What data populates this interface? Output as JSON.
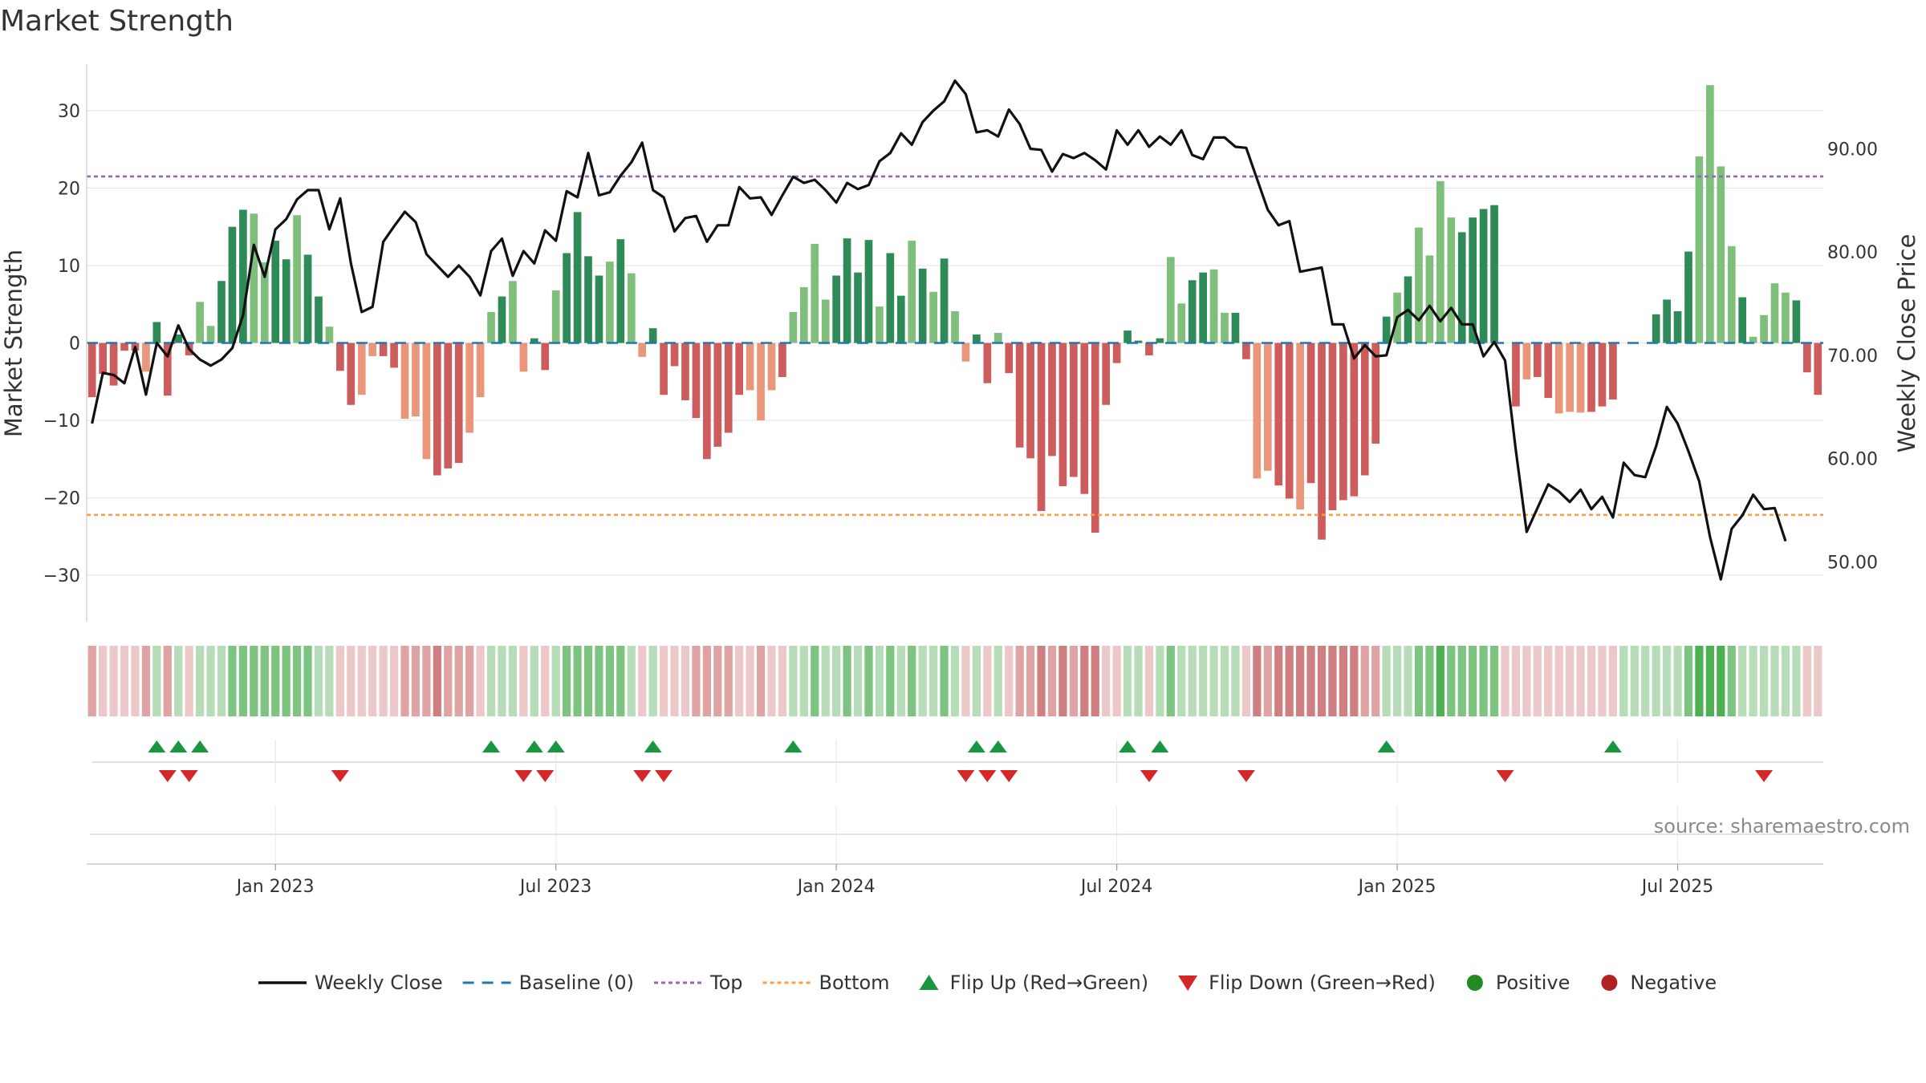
{
  "chart_data": {
    "type": "bar",
    "title": "Market Strength",
    "ylabel_left": "Market Strength",
    "ylabel_right": "Weekly Close Price",
    "source": "source: sharemaestro.com",
    "x_start": "2022-09-05",
    "ylim_left": [
      -36,
      36
    ],
    "yticks_left": [
      30,
      20,
      10,
      0,
      -10,
      -20,
      -30
    ],
    "ytick_labels_left": [
      "30",
      "20",
      "10",
      "0",
      "−10",
      "−20",
      "−30"
    ],
    "ylim_right": [
      44.2,
      98.2
    ],
    "yticks_right": [
      90,
      80,
      70,
      60,
      50
    ],
    "ytick_labels_right": [
      "90.00",
      "80.00",
      "70.00",
      "60.00",
      "50.00"
    ],
    "xticks": [
      {
        "label": "Jan 2023",
        "week": 17
      },
      {
        "label": "Jul 2023",
        "week": 43
      },
      {
        "label": "Jan 2024",
        "week": 69
      },
      {
        "label": "Jul 2024",
        "week": 95
      },
      {
        "label": "Jan 2025",
        "week": 121
      },
      {
        "label": "Jul 2025",
        "week": 147
      }
    ],
    "top_line": 21.5,
    "bottom_line": -22.2,
    "baseline": 0,
    "colors": {
      "pos_strong": "#2e8b57",
      "pos_weak": "#7fbf7b",
      "neg_strong": "#cd5c5c",
      "neg_weak": "#e9967a",
      "close": "#111111",
      "baseline": "#1f77b4",
      "top": "#9467bd",
      "bottom": "#ff9f43",
      "flip_up": "#1a9641",
      "flip_down": "#d62728",
      "positive": "#228b22",
      "negative": "#b22222",
      "grid": "#e6e6e6",
      "source": "#8a8a8a"
    },
    "strength": [
      -7,
      -4,
      -5.5,
      -1,
      -1,
      -3.7,
      2.7,
      -6.8,
      1.1,
      -1.6,
      5.3,
      2.2,
      8,
      15,
      17.2,
      16.7,
      10.4,
      13.2,
      10.8,
      16.5,
      11.4,
      6,
      2.1,
      -3.6,
      -8,
      -6.7,
      -1.7,
      -1.7,
      -3.2,
      -9.8,
      -9.5,
      -15,
      -17.1,
      -16.2,
      -15.5,
      -11.6,
      -7,
      4,
      6,
      8,
      -3.7,
      0.6,
      -3.5,
      6.8,
      11.6,
      16.9,
      11.2,
      8.7,
      10.5,
      13.4,
      9,
      -1.8,
      1.9,
      -6.7,
      -3,
      -7.4,
      -9.7,
      -15,
      -13.4,
      -11.6,
      -6.7,
      -6.1,
      -10,
      -6.1,
      -4.4,
      4,
      7.2,
      12.8,
      5.6,
      8.7,
      13.5,
      9.1,
      13.3,
      4.7,
      11.6,
      6.1,
      13.2,
      9.6,
      6.6,
      10.9,
      4.1,
      -2.4,
      1.1,
      -5.2,
      1.3,
      -3.9,
      -13.5,
      -14.9,
      -21.7,
      -14.6,
      -18.5,
      -17.3,
      -19.5,
      -24.5,
      -8,
      -2.6,
      1.6,
      0.3,
      -1.6,
      0.6,
      11.1,
      5.1,
      8.1,
      9.1,
      9.5,
      3.9,
      3.9,
      -2.1,
      -17.5,
      -16.5,
      -18.4,
      -20.1,
      -21.5,
      -18.1,
      -25.4,
      -21.6,
      -20.3,
      -19.8,
      -17.1,
      -13,
      3.4,
      6.5,
      8.6,
      14.9,
      11.3,
      20.9,
      16.2,
      14.3,
      16.2,
      17.3,
      17.8,
      0,
      -8.2,
      -4.7,
      -4.4,
      -7.1,
      -9.1,
      -8.9,
      -9,
      -8.9,
      -8.2,
      -7.3,
      0,
      0,
      0,
      3.7,
      5.6,
      4.1,
      11.8,
      24.1,
      33.3,
      22.8,
      12.5,
      5.9,
      0.8,
      3.6,
      7.7,
      6.5,
      5.5,
      -3.8,
      -6.7
    ],
    "strength_kind": "ssssswsssswwssswwsswsswsswwsswwwssswwwswwsswsssswswwssssssssswwwswwwwsssswsswswswwsswssssssssssssssswwsswwsswwsswsssssssswswwwwsssssswsswwwsssssssssswwwwswwwwssswwsswwswwsss",
    "weekly_close": [
      63.4,
      68.3,
      68.1,
      67.3,
      70.8,
      66.2,
      71.2,
      69.9,
      72.9,
      70.6,
      69.6,
      69.0,
      69.6,
      70.7,
      73.9,
      80.7,
      77.6,
      82.2,
      83.2,
      85.1,
      86.0,
      86.0,
      82.2,
      85.2,
      78.9,
      74.2,
      74.7,
      81.0,
      82.5,
      83.9,
      82.9,
      79.8,
      78.7,
      77.6,
      78.7,
      77.6,
      75.8,
      80.1,
      81.3,
      77.7,
      80.1,
      78.9,
      82.1,
      81.1,
      85.9,
      85.3,
      89.6,
      85.5,
      85.8,
      87.4,
      88.7,
      90.6,
      86.0,
      85.3,
      82.0,
      83.3,
      83.5,
      81.0,
      82.6,
      82.6,
      86.3,
      85.2,
      85.3,
      83.6,
      85.5,
      87.3,
      86.7,
      87.0,
      86.0,
      84.8,
      86.7,
      86.1,
      86.5,
      88.8,
      89.6,
      91.5,
      90.4,
      92.6,
      93.7,
      94.6,
      96.6,
      95.3,
      91.6,
      91.8,
      91.2,
      93.8,
      92.4,
      90.0,
      89.9,
      87.8,
      89.5,
      89.1,
      89.6,
      88.9,
      88.0,
      91.8,
      90.4,
      91.8,
      90.2,
      91.2,
      90.4,
      91.8,
      89.4,
      89.0,
      91.1,
      91.1,
      90.2,
      90.1,
      87.1,
      84.1,
      82.6,
      83.0,
      78.1,
      78.3,
      78.5,
      73.0,
      73.0,
      69.7,
      71.0,
      69.9,
      70.0,
      73.7,
      74.4,
      73.4,
      74.8,
      73.3,
      74.6,
      73.0,
      73.0,
      69.9,
      71.3,
      69.5,
      60.8,
      52.9,
      55.2,
      57.5,
      56.8,
      55.8,
      57.0,
      55.1,
      56.3,
      54.3,
      59.6,
      58.4,
      58.2,
      61.2,
      65.0,
      63.4,
      60.7,
      57.8,
      52.4,
      48.3,
      53.2,
      54.5,
      56.5,
      55.1,
      55.2,
      52.0
    ],
    "heat_strip": [
      -2,
      -1,
      -1,
      -1,
      -1,
      -2,
      1,
      -2,
      1,
      -1,
      1,
      1,
      1,
      2,
      2,
      2,
      2,
      2,
      2,
      2,
      2,
      1,
      1,
      -1,
      -1,
      -1,
      -1,
      -1,
      -1,
      -2,
      -2,
      -2,
      -3,
      -2,
      -2,
      -2,
      -1,
      1,
      1,
      1,
      -1,
      1,
      -1,
      1,
      2,
      2,
      2,
      2,
      2,
      2,
      1,
      -1,
      1,
      -1,
      -1,
      -1,
      -2,
      -2,
      -2,
      -2,
      -1,
      -1,
      -2,
      -1,
      -1,
      1,
      1,
      2,
      1,
      1,
      2,
      1,
      2,
      1,
      2,
      1,
      2,
      1,
      1,
      2,
      1,
      -1,
      1,
      -1,
      1,
      -1,
      -2,
      -2,
      -3,
      -2,
      -3,
      -2,
      -3,
      -3,
      -1,
      -1,
      1,
      1,
      -1,
      1,
      2,
      1,
      1,
      1,
      1,
      1,
      1,
      -1,
      -3,
      -2,
      -3,
      -3,
      -3,
      -3,
      -3,
      -3,
      -3,
      -3,
      -2,
      -2,
      1,
      1,
      1,
      2,
      2,
      3,
      2,
      2,
      2,
      2,
      2,
      -1,
      -1,
      -1,
      -1,
      -1,
      -1,
      -1,
      -1,
      -1,
      -1,
      -1,
      1,
      1,
      1,
      1,
      1,
      1,
      2,
      3,
      3,
      3,
      2,
      1,
      1,
      1,
      1,
      1,
      1,
      -1,
      -1
    ],
    "flip_up_weeks": [
      6,
      8,
      10,
      37,
      41,
      43,
      52,
      65,
      82,
      84,
      96,
      99,
      120,
      141
    ],
    "flip_down_weeks": [
      7,
      9,
      23,
      40,
      42,
      51,
      53,
      81,
      83,
      85,
      98,
      107,
      131,
      155
    ],
    "legend": [
      {
        "label": "Weekly Close",
        "kind": "line",
        "color": "#111111"
      },
      {
        "label": "Baseline (0)",
        "kind": "dash",
        "color": "#1f77b4"
      },
      {
        "label": "Top",
        "kind": "dot",
        "color": "#9467bd"
      },
      {
        "label": "Bottom",
        "kind": "dot",
        "color": "#ff9f43"
      },
      {
        "label": "Flip Up (Red→Green)",
        "kind": "tri-up",
        "color": "#1a9641"
      },
      {
        "label": "Flip Down (Green→Red)",
        "kind": "tri-down",
        "color": "#d62728"
      },
      {
        "label": "Positive",
        "kind": "circle",
        "color": "#228b22"
      },
      {
        "label": "Negative",
        "kind": "circle",
        "color": "#b22222"
      }
    ]
  }
}
